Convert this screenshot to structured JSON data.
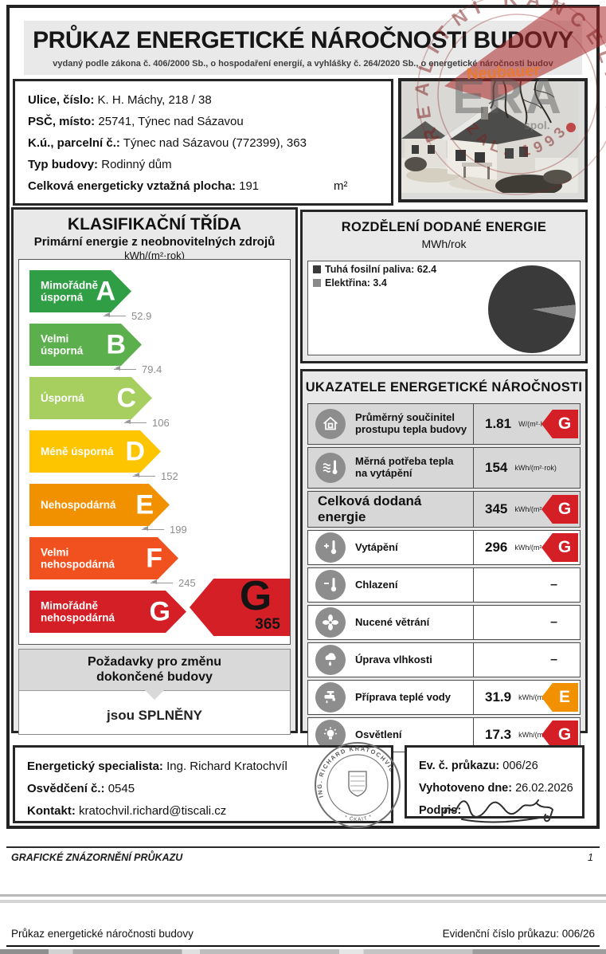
{
  "header": {
    "title": "PRŮKAZ ENERGETICKÉ NÁROČNOSTI BUDOVY",
    "subtitle": "vydaný podle zákona č. 406/2000 Sb., o hospodaření energií, a vyhlášky č. 264/2020 Sb., o energetické náročnosti budov"
  },
  "watermark": {
    "agent": "Neubauer",
    "ring_text": "REALITNÍ KANCELÁŘ",
    "ring_bottom": "ZAL. 1993",
    "center": "ERA",
    "center_sub": "spol."
  },
  "building": {
    "rows": [
      {
        "label": "Ulice, číslo:",
        "value": "K. H. Máchy, 218 / 38"
      },
      {
        "label": "PSČ, místo:",
        "value": "25741, Týnec nad Sázavou"
      },
      {
        "label": "K.ú., parcelní č.:",
        "value": "Týnec nad Sázavou (772399), 363"
      },
      {
        "label": "Typ budovy:",
        "value": "Rodinný dům"
      },
      {
        "label": "Celková energeticky vztažná plocha:",
        "value": "191",
        "unit": "m²"
      }
    ]
  },
  "classification": {
    "title": "KLASIFIKAČNÍ TŘÍDA",
    "subtitle": "Primární energie z neobnovitelných zdrojů",
    "unit": "kWh/(m²·rok)",
    "bands": [
      {
        "letter": "A",
        "label": "Mimořádně\núsporná",
        "threshold": "52.9",
        "color": "#2f9e44",
        "width": 128
      },
      {
        "letter": "B",
        "label": "Velmi\núsporná",
        "threshold": "79.4",
        "color": "#5bb04d",
        "width": 141
      },
      {
        "letter": "C",
        "label": "Úsporná",
        "threshold": "106",
        "color": "#a6cf5f",
        "width": 154
      },
      {
        "letter": "D",
        "label": "Méně úsporná",
        "threshold": "152",
        "color": "#fdc500",
        "width": 165
      },
      {
        "letter": "E",
        "label": "Nehospodárná",
        "threshold": "199",
        "color": "#f29100",
        "width": 176
      },
      {
        "letter": "F",
        "label": "Velmi\nnehospodárná",
        "threshold": "245",
        "color": "#f0511e",
        "width": 187
      },
      {
        "letter": "G",
        "label": "Mimořádně\nnehospodárná",
        "threshold": "",
        "color": "#d41f26",
        "width": 197
      }
    ],
    "current": {
      "letter": "G",
      "value": "365",
      "color": "#d41f26"
    },
    "requirements_title": "Požadavky pro změnu\ndokončené budovy",
    "requirements_result": "jsou SPLNĚNY"
  },
  "energy_distribution": {
    "title": "ROZDĚLENÍ DODANÉ ENERGIE",
    "unit": "MWh/rok",
    "legend": [
      {
        "text": "Tuhá fosilní paliva: 62.4",
        "color": "#3a3a3a"
      },
      {
        "text": "Elektřina: 3.4",
        "color": "#8a8a8a"
      }
    ],
    "chart_data": {
      "type": "pie",
      "labels": [
        "Tuhá fosilní paliva",
        "Elektřina"
      ],
      "values": [
        62.4,
        3.4
      ],
      "colors": [
        "#3a3a3a",
        "#8a8a8a"
      ],
      "unit": "MWh/rok",
      "title": "ROZDĚLENÍ DODANÉ ENERGIE"
    }
  },
  "indicators": {
    "title": "UKAZATELE ENERGETICKÉ NÁROČNOSTI",
    "rows": [
      {
        "icon": "house-icon",
        "label": "Průměrný součinitel\nprostupu tepla budovy",
        "value": "1.81",
        "unit": "W/(m²·K)",
        "class": "G",
        "class_color": "#d41f26"
      },
      {
        "icon": "heating-demand-icon",
        "label": "Měrná potřeba tepla\nna vytápění",
        "value": "154",
        "unit": "kWh/(m²·rok)",
        "class": "",
        "class_color": ""
      },
      {
        "icon": "",
        "label": "Celková dodaná energie",
        "value": "345",
        "unit": "kWh/(m²·rok)",
        "class": "G",
        "class_color": "#d41f26"
      },
      {
        "icon": "heating-icon",
        "label": "Vytápění",
        "value": "296",
        "unit": "kWh/(m²·rok)",
        "class": "G",
        "class_color": "#d41f26"
      },
      {
        "icon": "cooling-icon",
        "label": "Chlazení",
        "value": "",
        "unit": "",
        "class": "",
        "class_color": "",
        "dash": "–"
      },
      {
        "icon": "ventilation-icon",
        "label": "Nucené větrání",
        "value": "",
        "unit": "",
        "class": "",
        "class_color": "",
        "dash": "–"
      },
      {
        "icon": "humidity-icon",
        "label": "Úprava vlhkosti",
        "value": "",
        "unit": "",
        "class": "",
        "class_color": "",
        "dash": "–"
      },
      {
        "icon": "hot-water-icon",
        "label": "Příprava teplé vody",
        "value": "31.9",
        "unit": "kWh/(m²·rok)",
        "class": "E",
        "class_color": "#f29100"
      },
      {
        "icon": "lighting-icon",
        "label": "Osvětlení",
        "value": "17.3",
        "unit": "kWh/(m²·rok)",
        "class": "G",
        "class_color": "#d41f26"
      }
    ]
  },
  "specialist": {
    "rows": [
      {
        "label": "Energetický specialista:",
        "value": "Ing. Richard Kratochvíl"
      },
      {
        "label": "Osvědčení č.:",
        "value": "0545"
      },
      {
        "label": "Kontakt:",
        "value": "kratochvil.richard@tiscali.cz"
      }
    ],
    "stamp_name": "ING. RICHARD KRATOCHVÍL",
    "stamp_sub": "* ČKAIT *"
  },
  "certificate": {
    "rows": [
      {
        "label": "Ev. č. průkazu:",
        "value": "006/26"
      },
      {
        "label": "Vyhotoveno dne:",
        "value": "26.02.2026"
      },
      {
        "label": "Podpis:",
        "value": ""
      }
    ]
  },
  "page_footer": {
    "section": "GRAFICKÉ ZNÁZORNĚNÍ PRŮKAZU",
    "page": "1"
  },
  "doc_footer": {
    "left": "Průkaz energetické náročnosti budovy",
    "right": "Evidenční číslo průkazu: 006/26"
  }
}
